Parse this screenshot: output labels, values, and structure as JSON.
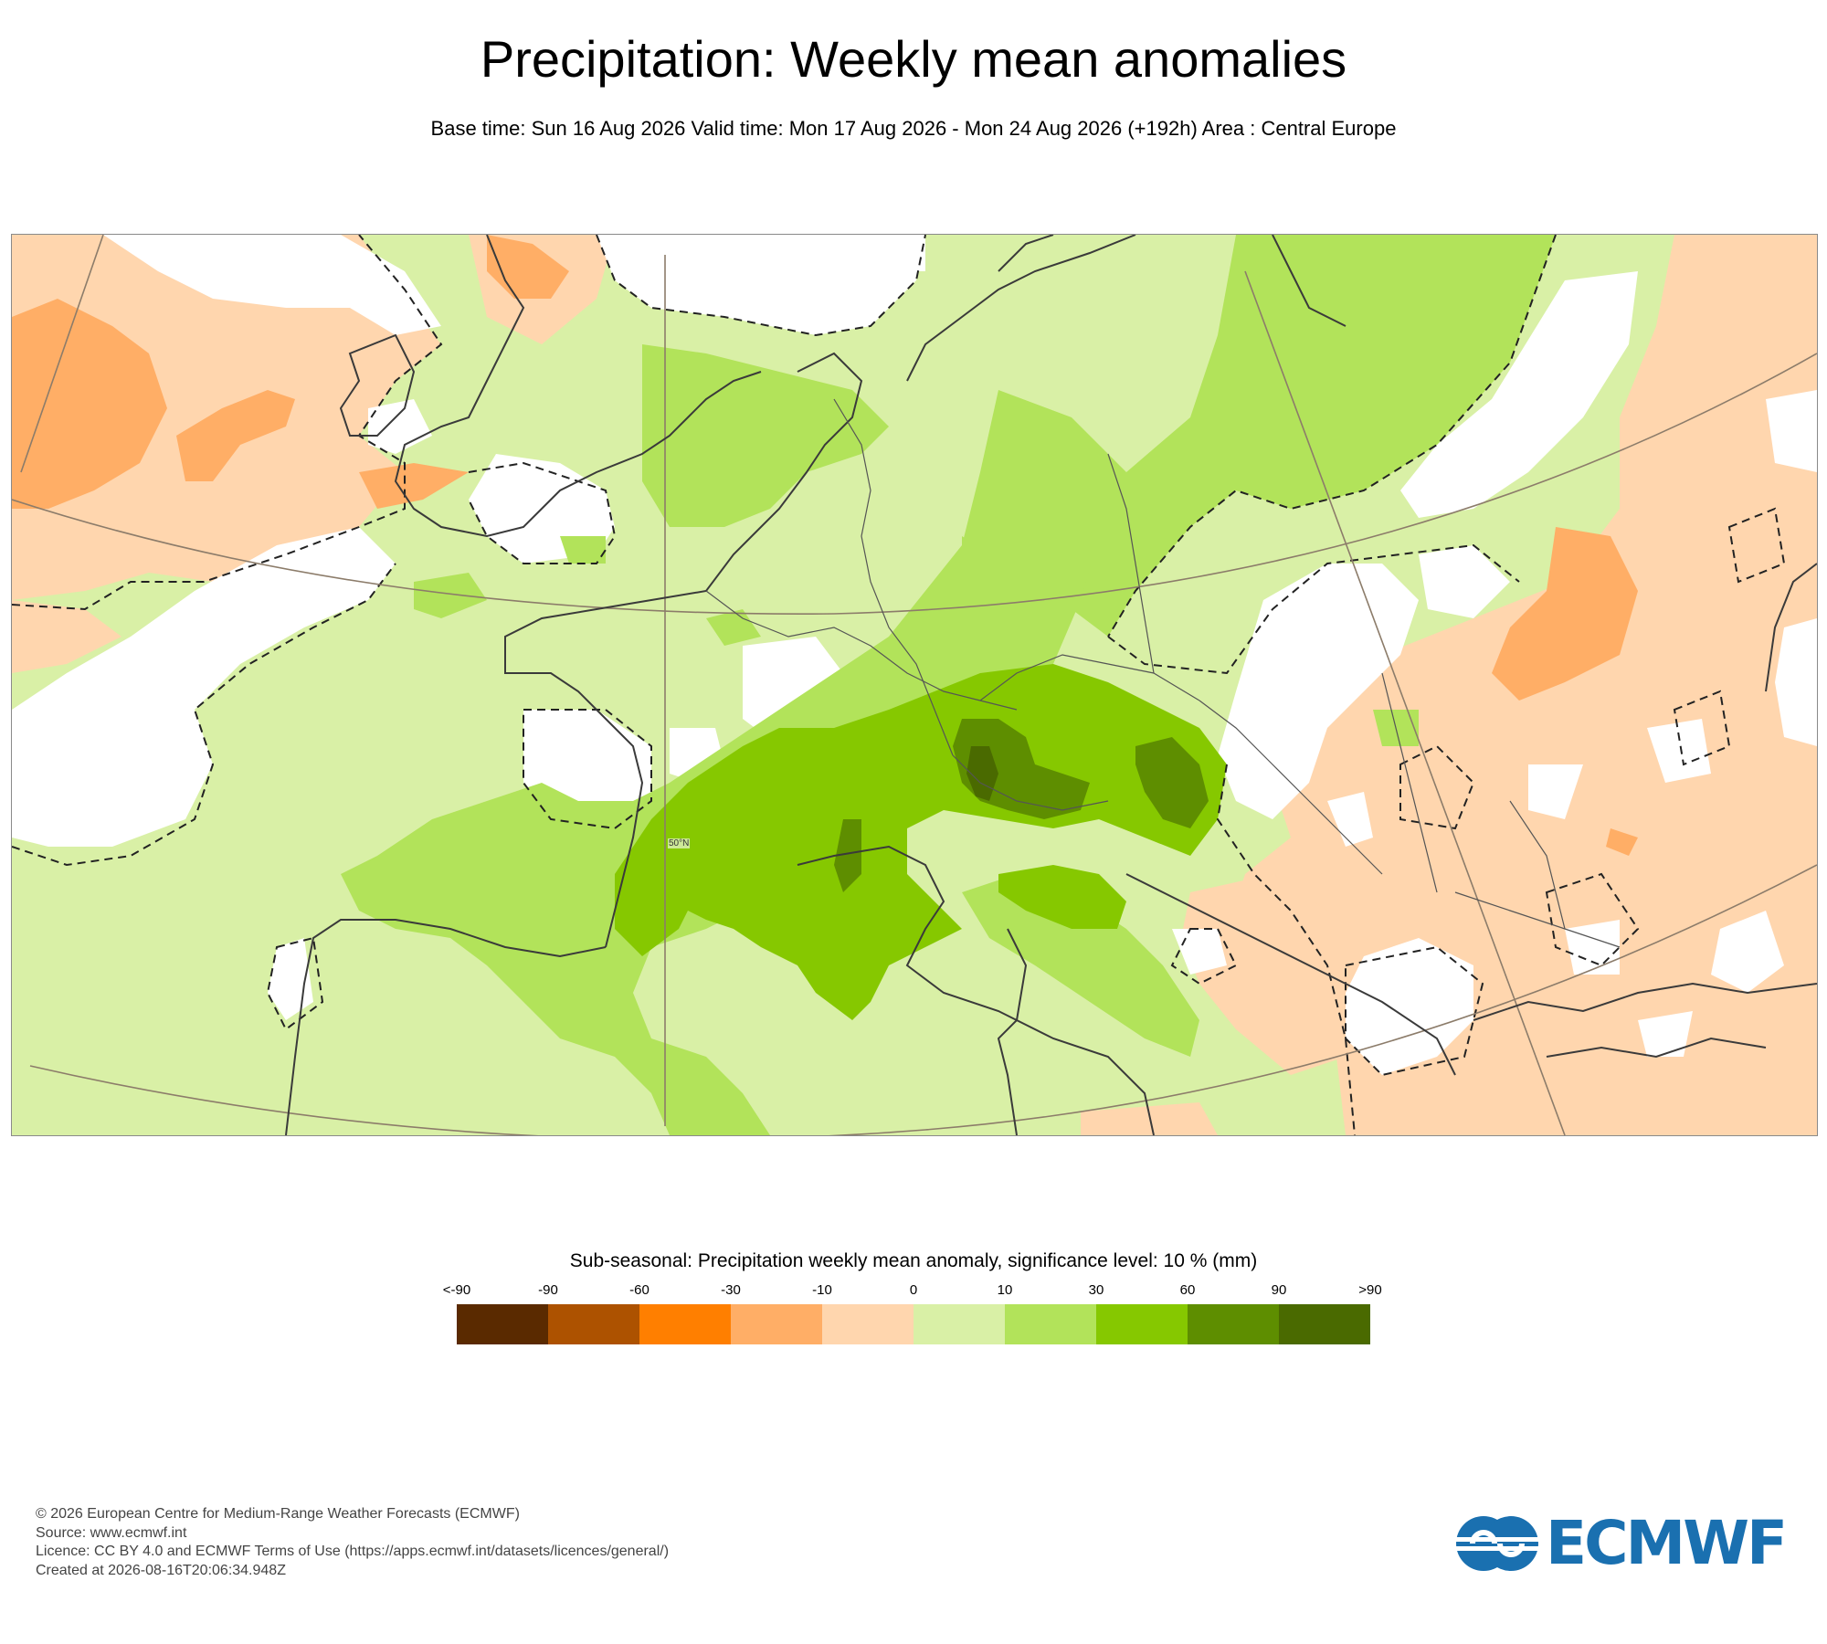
{
  "header": {
    "title": "Precipitation: Weekly mean anomalies",
    "subtitle": "Base time: Sun 16 Aug 2026 Valid time: Mon 17 Aug 2026 - Mon 24 Aug 2026 (+192h) Area : Central Europe"
  },
  "map": {
    "graticule_label": "50°N",
    "colors": {
      "no_signal": "#ffffff",
      "light_orange": "#ffd6ae",
      "mid_orange": "#ffae66",
      "light_green": "#d9f0a6",
      "mid_green": "#b2e35a",
      "bright_green": "#86c800",
      "dark_green": "#5e8e00",
      "darkest_green": "#4a6a00",
      "coastline": "#3a3a3a"
    }
  },
  "legend": {
    "title": "Sub-seasonal: Precipitation weekly mean anomaly, significance level: 10 % (mm)",
    "ticks": [
      "<-90",
      "-90",
      "-60",
      "-30",
      "-10",
      "0",
      "10",
      "30",
      "60",
      "90",
      ">90"
    ],
    "colors": [
      "#5a2a00",
      "#ad5200",
      "#ff7f00",
      "#ffae66",
      "#ffd6ae",
      "#d9f0a6",
      "#b2e35a",
      "#86c800",
      "#5e8e00",
      "#4a6a00"
    ]
  },
  "footer": {
    "copyright": "© 2026 European Centre for Medium-Range Weather Forecasts (ECMWF)",
    "source": "Source: www.ecmwf.int",
    "licence": "Licence: CC BY 4.0 and ECMWF Terms of Use (https://apps.ecmwf.int/datasets/licences/general/)",
    "created": "Created at 2026-08-16T20:06:34.948Z"
  },
  "logo": {
    "text": "ECMWF",
    "icon": "ecmwf-logo-icon",
    "color": "#1a70b0"
  }
}
